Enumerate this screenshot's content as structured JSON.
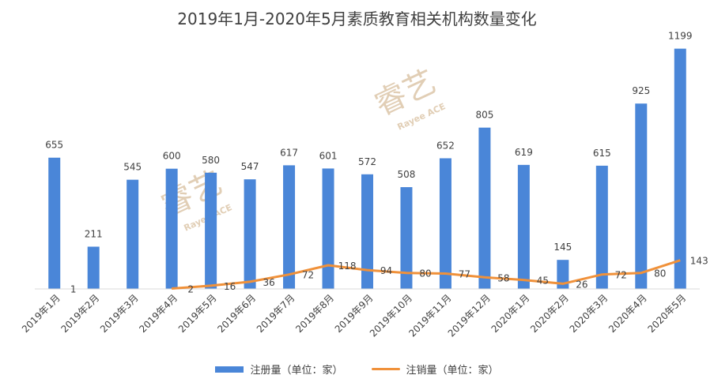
{
  "chart_data": {
    "type": "bar",
    "title": "2019年1月-2020年5月素质教育相关机构数量变化",
    "categories": [
      "2019年1月",
      "2019年2月",
      "2019年3月",
      "2019年4月",
      "2019年5月",
      "2019年6月",
      "2019年7月",
      "2019年8月",
      "2019年9月",
      "2019年10月",
      "2019年11月",
      "2019年12月",
      "2020年1月",
      "2020年2月",
      "2020年3月",
      "2020年4月",
      "2020年5月"
    ],
    "series": [
      {
        "name": "注册量（单位：家）",
        "type": "bar",
        "color": "#4a86d8",
        "values": [
          655,
          211,
          545,
          600,
          580,
          547,
          617,
          601,
          572,
          508,
          652,
          805,
          619,
          145,
          615,
          925,
          1199
        ]
      },
      {
        "name": "注销量（单位：家）",
        "type": "line",
        "color": "#f0913a",
        "values": [
          1,
          null,
          null,
          2,
          16,
          36,
          72,
          118,
          94,
          80,
          77,
          58,
          45,
          26,
          72,
          80,
          143
        ]
      }
    ],
    "ylim": [
      0,
      1300
    ],
    "grid": false,
    "legend_position": "bottom"
  },
  "watermark": {
    "brand": "睿艺",
    "sub": "Rayee ACE"
  }
}
